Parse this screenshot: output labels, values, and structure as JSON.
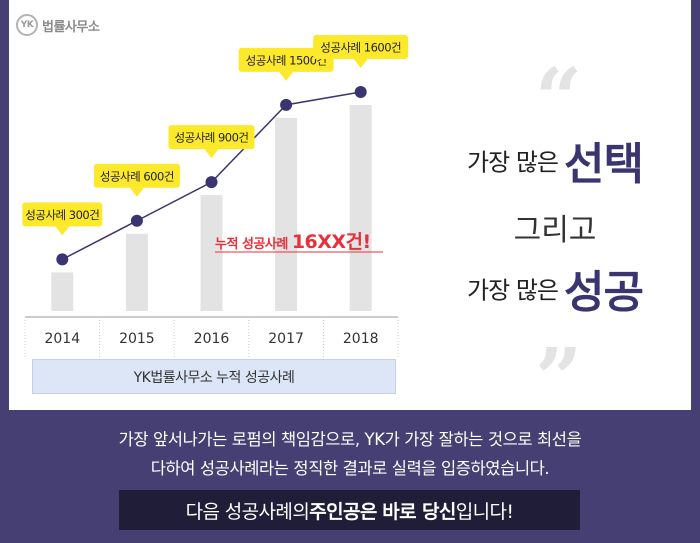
{
  "logo": {
    "mark": "YK",
    "name": "법률사무소"
  },
  "chart_data": {
    "type": "bar",
    "categories": [
      "2014",
      "2015",
      "2016",
      "2017",
      "2018"
    ],
    "values": [
      300,
      600,
      900,
      1500,
      1600
    ],
    "data_labels": [
      "성공사례 300건",
      "성공사례 600건",
      "성공사례 900건",
      "성공사례 1500건",
      "성공사례 1600건"
    ],
    "caption": "YK법률사무소 누적 성공사례",
    "annotation": {
      "prefix": "누적 성공사례 ",
      "highlight": "16XX건!"
    },
    "colors": {
      "bar": "#e3e3e3",
      "line": "#3a3470",
      "point": "#3a3470",
      "label_bg": "#fde92b",
      "annotation": "#e8303a"
    }
  },
  "slogan": {
    "line1_small": "가장 많은",
    "line1_big": "선택",
    "line2": "그리고",
    "line3_small": "가장 많은",
    "line3_big": "성공",
    "open_quote": "“",
    "close_quote": "”"
  },
  "bottom": {
    "line1": "가장 앞서나가는 로펌의 책임감으로, YK가 가장 잘하는 것으로 최선을",
    "line2": "다하여 성공사례라는 정직한 결과로 실력을 입증하였습니다.",
    "cta_pre": "다음 성공사례의 ",
    "cta_bold1": "주인공은",
    "cta_mid": " ",
    "cta_bold2": "바로 당신",
    "cta_post": "입니다!"
  }
}
